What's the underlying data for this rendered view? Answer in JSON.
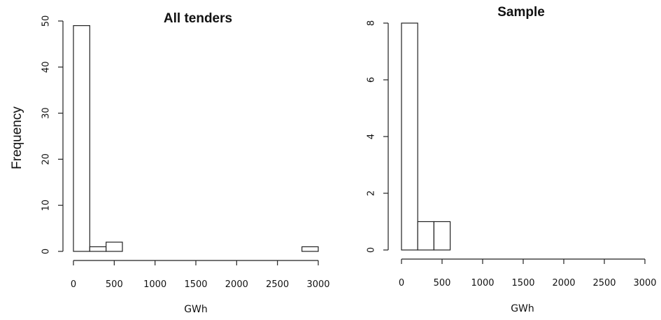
{
  "figure": {
    "ylabel": "Frequency"
  },
  "chart_data": [
    {
      "type": "bar",
      "title": "All tenders",
      "xlabel": "GWh",
      "ylabel": "Frequency",
      "bin_edges": [
        0,
        200,
        400,
        600,
        800,
        1000,
        1200,
        1400,
        1600,
        1800,
        2000,
        2200,
        2400,
        2600,
        2800,
        3000
      ],
      "values": [
        49,
        1,
        2,
        0,
        0,
        0,
        0,
        0,
        0,
        0,
        0,
        0,
        0,
        0,
        1
      ],
      "xlim": [
        0,
        3000
      ],
      "ylim": [
        0,
        50
      ],
      "xticks": [
        0,
        500,
        1000,
        1500,
        2000,
        2500,
        3000
      ],
      "yticks": [
        0,
        10,
        20,
        30,
        40,
        50
      ],
      "grid": false
    },
    {
      "type": "bar",
      "title": "Sample",
      "xlabel": "GWh",
      "ylabel": "",
      "bin_edges": [
        0,
        200,
        400,
        600
      ],
      "values": [
        8,
        1,
        1
      ],
      "xlim": [
        0,
        3000
      ],
      "ylim": [
        0,
        8
      ],
      "xticks": [
        0,
        500,
        1000,
        1500,
        2000,
        2500,
        3000
      ],
      "yticks": [
        0,
        2,
        4,
        6,
        8
      ],
      "grid": false
    }
  ]
}
